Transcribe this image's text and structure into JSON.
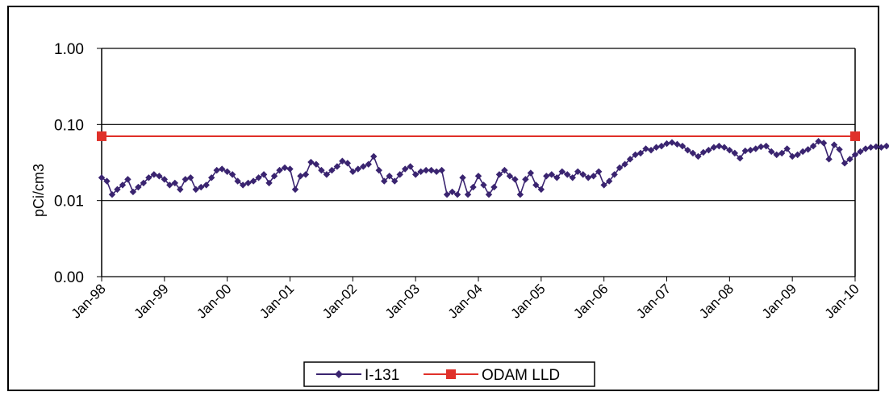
{
  "chart_data": {
    "type": "line",
    "ylabel": "pCi/cm3",
    "xlabel": "",
    "yscale": "log",
    "ylim": [
      0.001,
      1.0
    ],
    "y_ticks": [
      {
        "value": 1.0,
        "label": "1.00"
      },
      {
        "value": 0.1,
        "label": "0.10"
      },
      {
        "value": 0.01,
        "label": "0.01"
      },
      {
        "value": 0.001,
        "label": "0.00"
      }
    ],
    "x_ticks": [
      "Jan-98",
      "Jan-99",
      "Jan-00",
      "Jan-01",
      "Jan-02",
      "Jan-03",
      "Jan-04",
      "Jan-05",
      "Jan-06",
      "Jan-07",
      "Jan-08",
      "Jan-09",
      "Jan-10"
    ],
    "grid": "horizontal",
    "legend": "bottom",
    "series": [
      {
        "name": "I-131",
        "color": "#3a2470",
        "marker": "diamond",
        "x_start": "Jan-98",
        "interval": "monthly",
        "values": [
          0.02,
          0.018,
          0.012,
          0.014,
          0.016,
          0.019,
          0.013,
          0.015,
          0.017,
          0.02,
          0.022,
          0.021,
          0.019,
          0.016,
          0.017,
          0.014,
          0.019,
          0.02,
          0.014,
          0.015,
          0.016,
          0.02,
          0.025,
          0.026,
          0.024,
          0.022,
          0.018,
          0.016,
          0.017,
          0.018,
          0.02,
          0.022,
          0.017,
          0.021,
          0.025,
          0.027,
          0.026,
          0.014,
          0.021,
          0.022,
          0.032,
          0.03,
          0.025,
          0.022,
          0.025,
          0.028,
          0.033,
          0.031,
          0.024,
          0.026,
          0.028,
          0.03,
          0.038,
          0.025,
          0.018,
          0.021,
          0.018,
          0.022,
          0.026,
          0.028,
          0.022,
          0.024,
          0.025,
          0.025,
          0.024,
          0.025,
          0.012,
          0.013,
          0.012,
          0.02,
          0.012,
          0.015,
          0.021,
          0.016,
          0.012,
          0.015,
          0.022,
          0.025,
          0.021,
          0.019,
          0.012,
          0.019,
          0.023,
          0.016,
          0.014,
          0.021,
          0.022,
          0.02,
          0.024,
          0.022,
          0.02,
          0.024,
          0.022,
          0.02,
          0.021,
          0.024,
          0.016,
          0.018,
          0.022,
          0.027,
          0.03,
          0.035,
          0.04,
          0.042,
          0.048,
          0.046,
          0.05,
          0.052,
          0.056,
          0.058,
          0.055,
          0.052,
          0.046,
          0.042,
          0.038,
          0.043,
          0.046,
          0.05,
          0.052,
          0.05,
          0.046,
          0.042,
          0.036,
          0.045,
          0.046,
          0.048,
          0.051,
          0.052,
          0.044,
          0.04,
          0.042,
          0.048,
          0.038,
          0.04,
          0.044,
          0.047,
          0.052,
          0.06,
          0.057,
          0.035,
          0.054,
          0.047,
          0.031,
          0.035,
          0.04,
          0.044,
          0.048,
          0.05,
          0.051,
          0.05,
          0.052,
          0.053
        ]
      },
      {
        "name": "ODAM LLD",
        "color": "#e0312a",
        "marker": "square",
        "x": [
          "Jan-98",
          "Jan-10"
        ],
        "values": [
          0.07,
          0.07
        ]
      }
    ]
  }
}
